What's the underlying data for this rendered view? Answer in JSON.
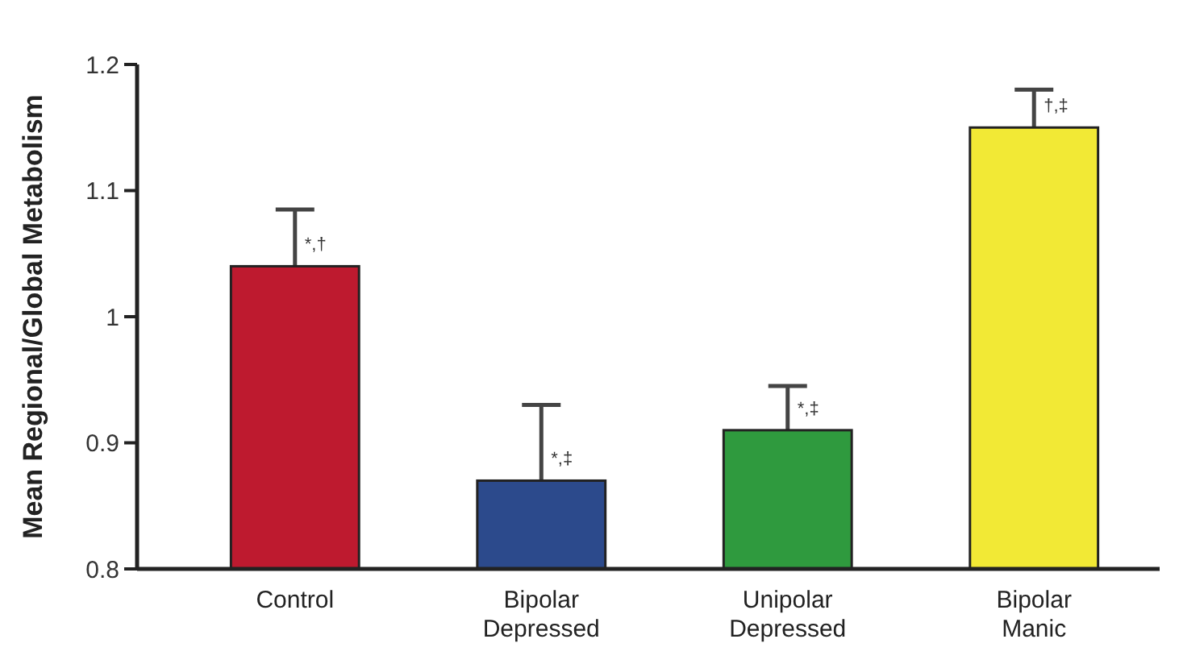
{
  "chart_data": {
    "type": "bar",
    "ylabel": "Mean Regional/Global Metabolism",
    "categories": [
      "Control",
      "Bipolar Depressed",
      "Unipolar Depressed",
      "Bipolar Manic"
    ],
    "values": [
      1.04,
      0.87,
      0.91,
      1.15
    ],
    "errors": [
      [
        1.04,
        1.085
      ],
      [
        0.87,
        0.93
      ],
      [
        0.91,
        0.945
      ],
      [
        1.15,
        1.18
      ]
    ],
    "colors": [
      "#be1a2f",
      "#2c4a8c",
      "#2f9a3e",
      "#f2e935"
    ],
    "ylim": [
      0.8,
      1.2
    ],
    "yticks": [
      {
        "value": 0.8,
        "label": "0.8"
      },
      {
        "value": 0.9,
        "label": "0.9"
      },
      {
        "value": 1,
        "label": "1"
      },
      {
        "value": 1.1,
        "label": "1.1"
      },
      {
        "value": 1.2,
        "label": "1.2"
      }
    ],
    "annotations": [
      {
        "text": "*,†",
        "x": "Control",
        "y": 1.04
      },
      {
        "text": "*,‡",
        "x": "Bipolar Depressed",
        "y": 0.87
      },
      {
        "text": "*,‡",
        "x": "Unipolar Depressed",
        "y": 0.91
      },
      {
        "text": "†,‡",
        "x": "Bipolar Manic",
        "y": 1.15
      }
    ],
    "grid": false
  }
}
